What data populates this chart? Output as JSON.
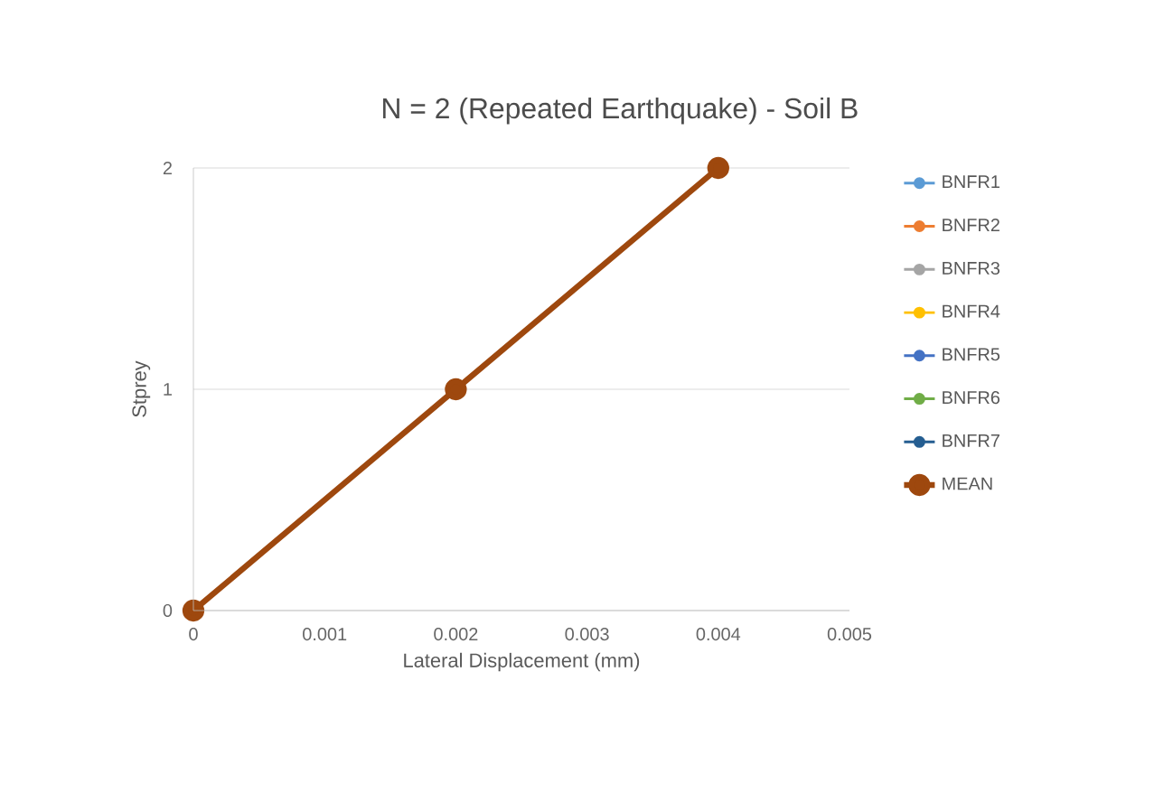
{
  "chart_data": {
    "type": "line",
    "title": "N = 2 (Repeated Earthquake) - Soil B",
    "xlabel": "Lateral Displacement (mm)",
    "ylabel": "Stprey",
    "x": [
      0,
      0.002,
      0.004
    ],
    "series": [
      {
        "name": "BNFR1",
        "color": "#5b9bd5",
        "values": [
          null,
          null,
          null
        ]
      },
      {
        "name": "BNFR2",
        "color": "#ed7d31",
        "values": [
          null,
          null,
          null
        ]
      },
      {
        "name": "BNFR3",
        "color": "#a5a5a5",
        "values": [
          null,
          null,
          null
        ]
      },
      {
        "name": "BNFR4",
        "color": "#ffc000",
        "values": [
          null,
          null,
          null
        ]
      },
      {
        "name": "BNFR5",
        "color": "#4472c4",
        "values": [
          null,
          null,
          null
        ]
      },
      {
        "name": "BNFR6",
        "color": "#70ad47",
        "values": [
          null,
          null,
          null
        ]
      },
      {
        "name": "BNFR7",
        "color": "#255e91",
        "values": [
          null,
          null,
          null
        ]
      },
      {
        "name": "MEAN",
        "color": "#9e480e",
        "values": [
          0,
          1,
          2
        ]
      }
    ],
    "xlim": [
      0,
      0.005
    ],
    "xticks": [
      0,
      0.001,
      0.002,
      0.003,
      0.004,
      0.005
    ],
    "ylim": [
      0,
      2
    ],
    "yticks": [
      0,
      1,
      2
    ],
    "grid": "y",
    "legend": "right",
    "marker": "circle"
  }
}
